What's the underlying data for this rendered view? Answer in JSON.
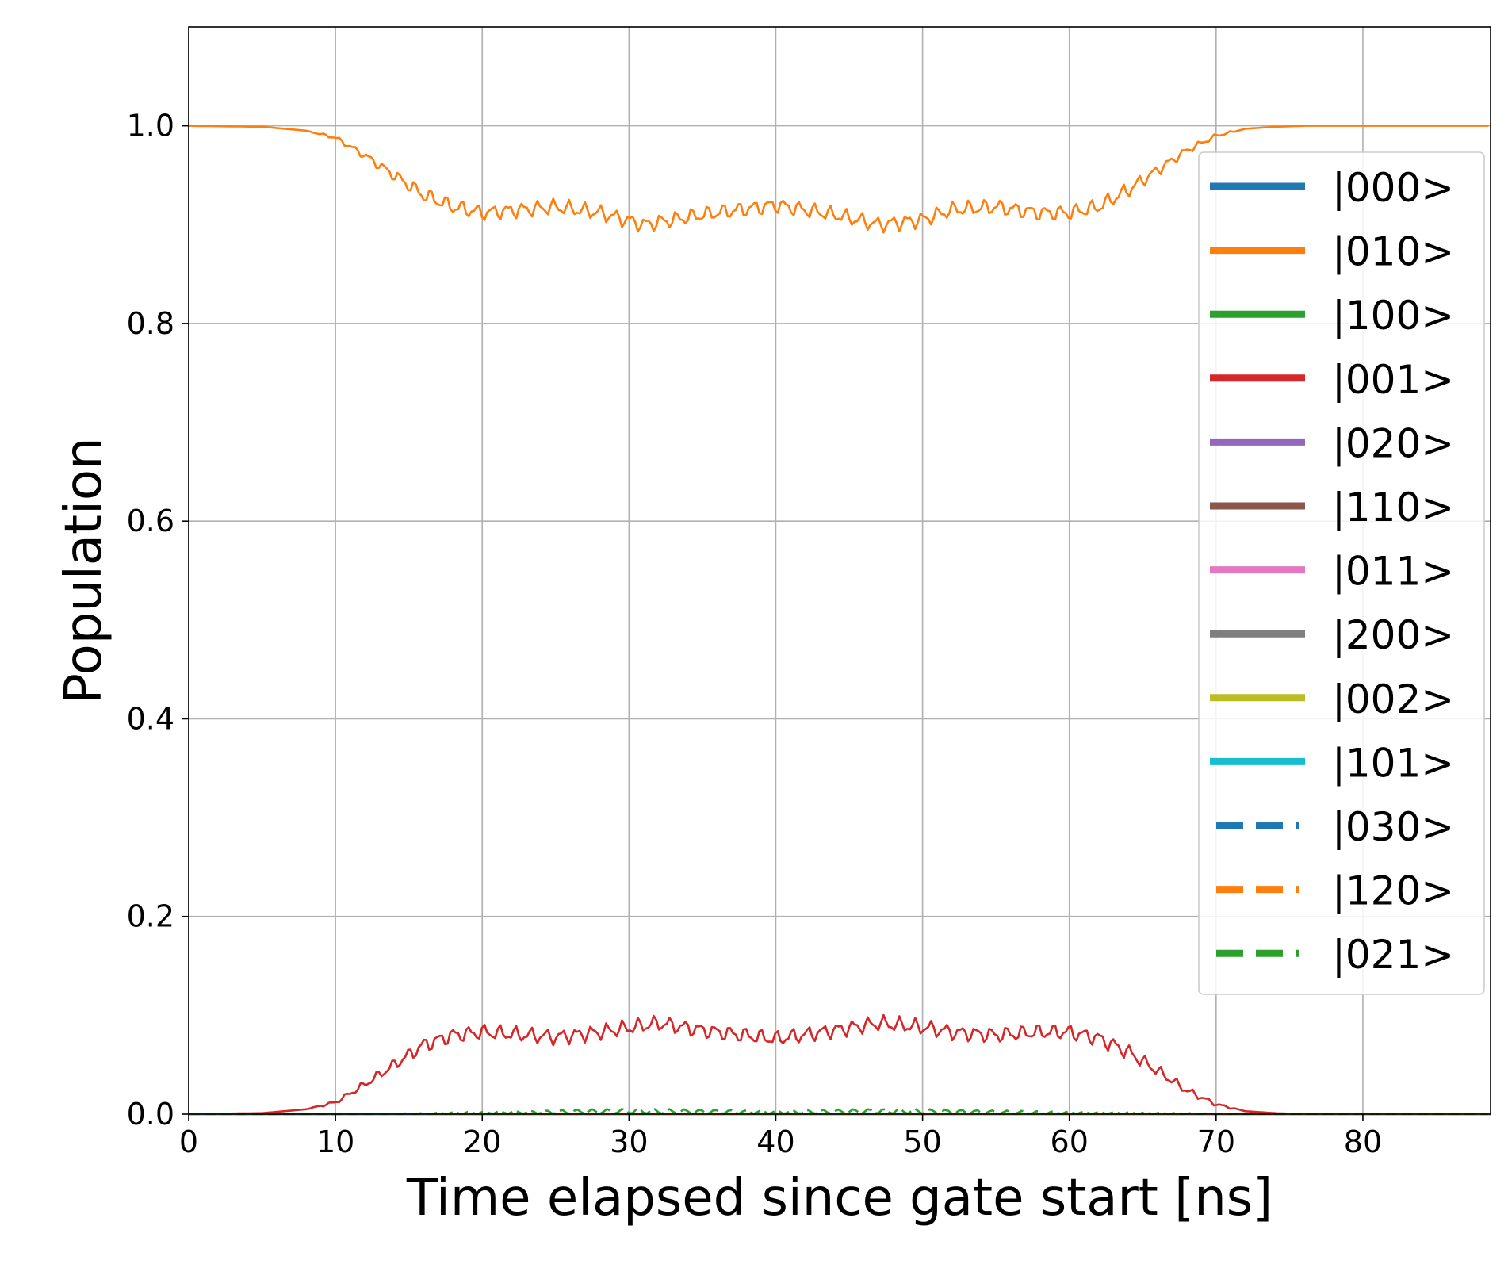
{
  "chart_data": {
    "type": "line",
    "xlabel": "Time elapsed since gate start [ns]",
    "ylabel": "Population",
    "xlim": [
      0,
      88.7
    ],
    "ylim": [
      0,
      1.1
    ],
    "x_ticks": [
      0,
      10,
      20,
      30,
      40,
      50,
      60,
      70,
      80
    ],
    "x_tick_labels": [
      "0",
      "10",
      "20",
      "30",
      "40",
      "50",
      "60",
      "70",
      "80"
    ],
    "y_ticks": [
      0.0,
      0.2,
      0.4,
      0.6,
      0.8,
      1.0
    ],
    "y_tick_labels": [
      "0.0",
      "0.2",
      "0.4",
      "0.6",
      "0.8",
      "1.0"
    ],
    "grid": true,
    "legend_position": "right",
    "series": [
      {
        "name": "|000>",
        "color": "#1f77b4",
        "style": "solid",
        "x": [
          0,
          88.7
        ],
        "y": [
          0,
          0
        ]
      },
      {
        "name": "|010>",
        "color": "#ff7f0e",
        "style": "solid",
        "x": [
          0,
          5,
          8,
          10,
          12,
          14,
          16,
          18,
          20,
          25,
          28,
          31,
          35,
          40,
          44,
          47,
          50,
          52,
          55,
          58,
          60,
          62,
          64,
          66,
          68,
          70,
          72,
          74,
          76,
          80,
          88.7
        ],
        "y": [
          1.0,
          0.999,
          0.995,
          0.988,
          0.97,
          0.95,
          0.93,
          0.918,
          0.912,
          0.918,
          0.912,
          0.9,
          0.91,
          0.92,
          0.91,
          0.9,
          0.905,
          0.915,
          0.918,
          0.912,
          0.912,
          0.918,
          0.935,
          0.955,
          0.975,
          0.99,
          0.997,
          0.999,
          1.0,
          1.0,
          1.0
        ]
      },
      {
        "name": "|100>",
        "color": "#2ca02c",
        "style": "solid",
        "x": [
          0,
          88.7
        ],
        "y": [
          0,
          0
        ]
      },
      {
        "name": "|001>",
        "color": "#d62728",
        "style": "solid",
        "x": [
          0,
          5,
          8,
          10,
          12,
          14,
          16,
          18,
          20,
          25,
          28,
          32,
          35,
          40,
          44,
          47,
          50,
          52,
          55,
          58,
          60,
          62,
          64,
          66,
          68,
          70,
          72,
          74,
          76,
          80,
          88.7
        ],
        "y": [
          0.0,
          0.001,
          0.005,
          0.012,
          0.03,
          0.05,
          0.07,
          0.08,
          0.083,
          0.078,
          0.083,
          0.092,
          0.085,
          0.076,
          0.085,
          0.092,
          0.088,
          0.083,
          0.08,
          0.083,
          0.083,
          0.077,
          0.063,
          0.044,
          0.024,
          0.01,
          0.003,
          0.001,
          0.0,
          0.0,
          0.0
        ]
      },
      {
        "name": "|020>",
        "color": "#9467bd",
        "style": "solid",
        "x": [
          0,
          88.7
        ],
        "y": [
          0,
          0
        ]
      },
      {
        "name": "|110>",
        "color": "#8c564b",
        "style": "solid",
        "x": [
          0,
          88.7
        ],
        "y": [
          0,
          0
        ]
      },
      {
        "name": "|011>",
        "color": "#e377c2",
        "style": "solid",
        "x": [
          0,
          88.7
        ],
        "y": [
          0,
          0
        ]
      },
      {
        "name": "|200>",
        "color": "#7f7f7f",
        "style": "solid",
        "x": [
          0,
          88.7
        ],
        "y": [
          0,
          0
        ]
      },
      {
        "name": "|002>",
        "color": "#bcbd22",
        "style": "solid",
        "x": [
          0,
          88.7
        ],
        "y": [
          0,
          0
        ]
      },
      {
        "name": "|101>",
        "color": "#17becf",
        "style": "solid",
        "x": [
          0,
          88.7
        ],
        "y": [
          0,
          0
        ]
      },
      {
        "name": "|030>",
        "color": "#1f77b4",
        "style": "dashed",
        "x": [
          0,
          88.7
        ],
        "y": [
          0,
          0
        ]
      },
      {
        "name": "|120>",
        "color": "#ff7f0e",
        "style": "dashed",
        "x": [
          0,
          88.7
        ],
        "y": [
          0,
          0
        ]
      },
      {
        "name": "|021>",
        "color": "#2ca02c",
        "style": "dashed",
        "x": [
          0,
          10,
          15,
          20,
          30,
          40,
          48,
          55,
          60,
          65,
          70,
          75,
          88.7
        ],
        "y": [
          0,
          0,
          0.0005,
          0.0015,
          0.003,
          0.002,
          0.003,
          0.002,
          0.0015,
          0.001,
          0.0003,
          0,
          0
        ]
      }
    ]
  }
}
